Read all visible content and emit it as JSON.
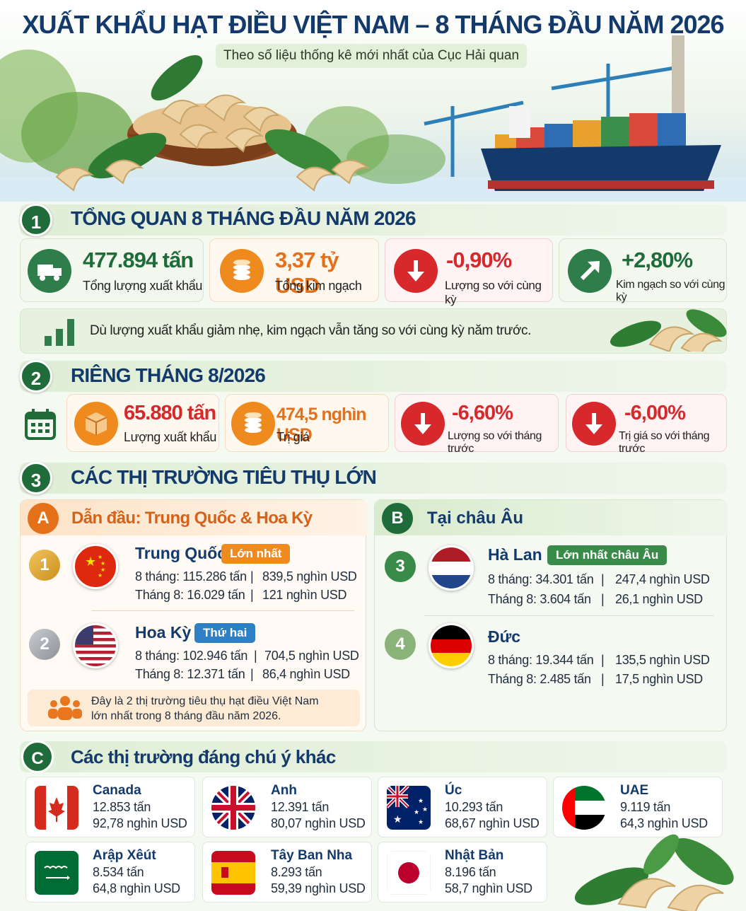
{
  "header": {
    "title": "XUẤT KHẨU HẠT ĐIỀU VIỆT NAM – 8 THÁNG ĐẦU NĂM 2026",
    "subtitle": "Theo số liệu thống kê mới nhất của Cục Hải quan"
  },
  "section1": {
    "number": "1",
    "title": "TỔNG QUAN 8 THÁNG ĐẦU NĂM 2026",
    "stats": [
      {
        "value": "477.894 tấn",
        "label": "Tổng lượng xuất khẩu",
        "icon": "truck-icon"
      },
      {
        "value": "3,37 tỷ USD",
        "label": "Tổng kim ngạch",
        "icon": "coins-icon"
      },
      {
        "value": "-0,90%",
        "label": "Lượng so với cùng kỳ",
        "icon": "arrow-down-icon"
      },
      {
        "value": "+2,80%",
        "label": "Kim ngạch so với cùng kỳ",
        "icon": "arrow-up-right-icon"
      }
    ],
    "note": "Dù lượng xuất khẩu giảm nhẹ, kim ngạch vẫn tăng so với cùng kỳ năm trước."
  },
  "section2": {
    "number": "2",
    "title": "RIÊNG THÁNG 8/2026",
    "stats": [
      {
        "value": "65.880 tấn",
        "label": "Lượng xuất khẩu"
      },
      {
        "value": "474,5 nghìn USD",
        "label": "Trị giá"
      },
      {
        "value": "-6,60%",
        "label": "Lượng so với tháng trước"
      },
      {
        "value": "-6,00%",
        "label": "Trị giá so với tháng trước"
      }
    ]
  },
  "section3": {
    "number": "3",
    "title": "CÁC THỊ TRƯỜNG TIÊU THỤ LỚN",
    "groupA": {
      "letter": "A",
      "title": "Dẫn đầu: Trung Quốc & Hoa Kỳ",
      "markets": [
        {
          "rank": "1",
          "name": "Trung Quốc",
          "tag": "Lớn nhất",
          "l1a": "8 tháng: 115.286 tấn",
          "l1b": "839,5 nghìn USD",
          "l2a": "Tháng 8: 16.029 tấn",
          "l2b": "121 nghìn USD"
        },
        {
          "rank": "2",
          "name": "Hoa Kỳ",
          "tag": "Thứ hai",
          "l1a": "8 tháng: 102.946 tấn",
          "l1b": "704,5 nghìn USD",
          "l2a": "Tháng 8: 12.371 tấn",
          "l2b": "86,4 nghìn USD"
        }
      ],
      "note": "Đây là 2 thị trường tiêu thụ hạt điều Việt Nam lớn nhất trong 8 tháng đầu năm 2026."
    },
    "groupB": {
      "letter": "B",
      "title": "Tại châu Âu",
      "markets": [
        {
          "rank": "3",
          "name": "Hà Lan",
          "tag": "Lớn nhất châu Âu",
          "l1a": "8 tháng: 34.301 tấn",
          "l1b": "247,4 nghìn USD",
          "l2a": "Tháng 8: 3.604 tấn",
          "l2b": "26,1 nghìn USD"
        },
        {
          "rank": "4",
          "name": "Đức",
          "tag": "",
          "l1a": "8 tháng: 19.344 tấn",
          "l1b": "135,5 nghìn USD",
          "l2a": "Tháng 8: 2.485 tấn",
          "l2b": "17,5 nghìn USD"
        }
      ]
    },
    "separator": "|"
  },
  "groupC": {
    "letter": "C",
    "title": "Các thị trường đáng chú ý khác",
    "markets": [
      {
        "name": "Canada",
        "tons": "12.853 tấn",
        "value": "92,78 nghìn USD"
      },
      {
        "name": "Anh",
        "tons": "12.391 tấn",
        "value": "80,07 nghìn USD"
      },
      {
        "name": "Úc",
        "tons": "10.293 tấn",
        "value": "68,67 nghìn USD"
      },
      {
        "name": "UAE",
        "tons": "9.119 tấn",
        "value": "64,3 nghìn USD"
      },
      {
        "name": "Arập Xêút",
        "tons": "8.534 tấn",
        "value": "64,8 nghìn USD"
      },
      {
        "name": "Tây Ban Nha",
        "tons": "8.293 tấn",
        "value": "59,39 nghìn USD"
      },
      {
        "name": "Nhật Bản",
        "tons": "8.196 tấn",
        "value": "58,7 nghìn USD"
      }
    ]
  },
  "colors": {
    "navy": "#143a6b",
    "green": "#1f6b3a",
    "orange": "#ef8a1f",
    "red": "#d7282b"
  }
}
